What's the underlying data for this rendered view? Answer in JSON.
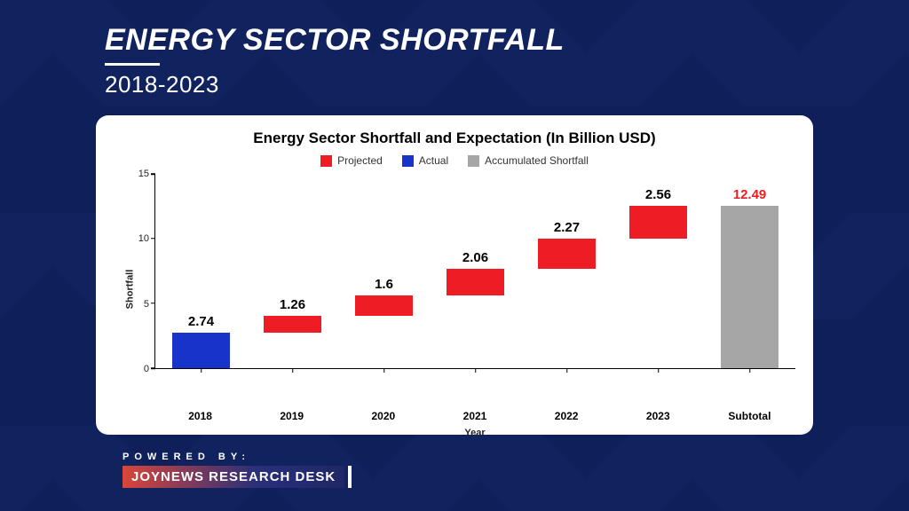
{
  "header": {
    "title": "ENERGY SECTOR SHORTFALL",
    "subtitle": "2018-2023"
  },
  "chart": {
    "type": "waterfall-bar",
    "title": "Energy Sector Shortfall and Expectation (In Billion USD)",
    "legend": [
      {
        "label": "Projected",
        "color": "#ee1c25"
      },
      {
        "label": "Actual",
        "color": "#1733c9"
      },
      {
        "label": "Accumulated Shortfall",
        "color": "#a6a6a6"
      }
    ],
    "ylabel": "Shortfall",
    "xlabel": "Year",
    "ylim": [
      0,
      15
    ],
    "yticks": [
      0,
      5,
      10,
      15
    ],
    "background_color": "#ffffff",
    "axis_color": "#000000",
    "bar_width_ratio": 0.64,
    "value_label_fontsize": 15,
    "value_label_fontweight": "700",
    "data": [
      {
        "category": "2018",
        "value": 2.74,
        "base": 0,
        "series": "Actual",
        "color": "#1733c9",
        "label_color": "#000000"
      },
      {
        "category": "2019",
        "value": 1.26,
        "base": 2.74,
        "series": "Projected",
        "color": "#ee1c25",
        "label_color": "#000000"
      },
      {
        "category": "2020",
        "value": 1.6,
        "base": 4.0,
        "series": "Projected",
        "color": "#ee1c25",
        "label_color": "#000000"
      },
      {
        "category": "2021",
        "value": 2.06,
        "base": 5.6,
        "series": "Projected",
        "color": "#ee1c25",
        "label_color": "#000000"
      },
      {
        "category": "2022",
        "value": 2.27,
        "base": 7.66,
        "series": "Projected",
        "color": "#ee1c25",
        "label_color": "#000000"
      },
      {
        "category": "2023",
        "value": 2.56,
        "base": 9.93,
        "series": "Projected",
        "color": "#ee1c25",
        "label_color": "#000000"
      },
      {
        "category": "Subtotal",
        "value": 12.49,
        "base": 0,
        "series": "Accumulated Shortfall",
        "color": "#a6a6a6",
        "label_color": "#ee1c25"
      }
    ]
  },
  "footer": {
    "powered_by": "POWERED BY:",
    "brand": "JOYNEWS RESEARCH DESK"
  },
  "page_background": "#0f1f5a"
}
